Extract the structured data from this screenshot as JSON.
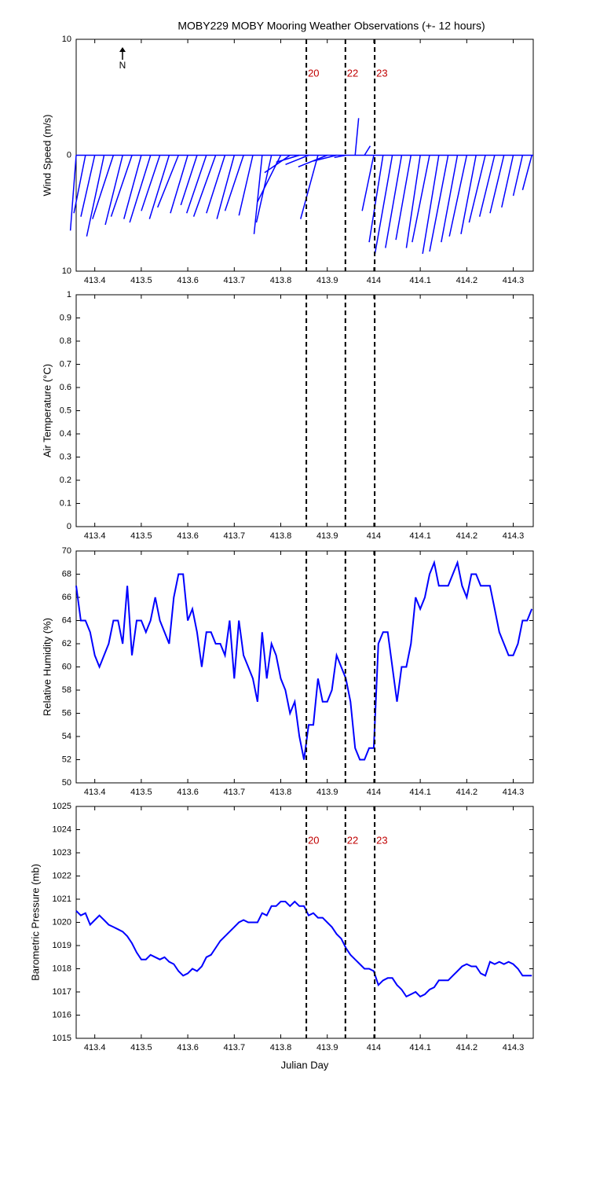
{
  "chart_data": [
    {
      "type": "stick",
      "title": "MOBY229 MOBY Mooring Weather Observations (+- 12 hours)",
      "ylabel": "Wind Speed (m/s)",
      "north_label": "N",
      "color": "#0000ff",
      "xlim": [
        413.36,
        414.343
      ],
      "xticks": [
        413.4,
        413.5,
        413.6,
        413.7,
        413.8,
        413.9,
        414,
        414.1,
        414.2,
        414.3
      ],
      "ylim": [
        -10,
        10
      ],
      "yticks": [
        {
          "value": -10,
          "label": "10"
        },
        0,
        10
      ],
      "markers": {
        "x": [
          413.855,
          413.939,
          414.002
        ],
        "labels": [
          "20",
          "22",
          "23"
        ],
        "color": "#c00000"
      },
      "x": [
        413.36,
        413.38,
        413.4,
        413.42,
        413.44,
        413.46,
        413.48,
        413.5,
        413.52,
        413.54,
        413.56,
        413.58,
        413.6,
        413.62,
        413.64,
        413.66,
        413.68,
        413.7,
        413.72,
        413.74,
        413.76,
        413.78,
        413.8,
        413.82,
        413.84,
        413.86,
        413.88,
        413.9,
        413.92,
        413.94,
        413.96,
        413.98,
        414.0,
        414.02,
        414.04,
        414.06,
        414.08,
        414.1,
        414.12,
        414.14,
        414.16,
        414.18,
        414.2,
        414.22,
        414.24,
        414.26,
        414.28,
        414.3,
        414.32,
        414.34
      ],
      "u": [
        -0.5,
        -1,
        -1.2,
        -1.5,
        -1.8,
        -1.5,
        -1.8,
        -1.5,
        -1.8,
        -1.6,
        -1.7,
        -1.8,
        -1.5,
        -1.4,
        -1.7,
        -1.9,
        -1.6,
        -1.5,
        -1.6,
        -1.2,
        -0.7,
        -1.3,
        -2,
        -2.2,
        -2,
        -2,
        -1.5,
        -2.5,
        -2,
        -1,
        0.3,
        0.5,
        -1,
        -1.2,
        -1.5,
        -1.4,
        -1.3,
        -1.2,
        -1.5,
        -1.4,
        -1.6,
        -1.4,
        -1.5,
        -1.3,
        -1.4,
        -1.3,
        -1.2,
        -1,
        -0.8,
        -0.8
      ],
      "v": [
        -6.5,
        -5,
        -5.3,
        -7,
        -5.5,
        -6,
        -5.3,
        -5.5,
        -5.8,
        -4.8,
        -5.5,
        -4.5,
        -5,
        -4.3,
        -5,
        -5.3,
        -5,
        -5.5,
        -4.8,
        -5.2,
        -6.8,
        -5.8,
        -4,
        -1.5,
        -0.6,
        -0.8,
        -5.5,
        -1,
        -0.5,
        -0.2,
        3.2,
        0.8,
        -4.8,
        -7.5,
        -8.5,
        -8,
        -7.3,
        -8,
        -7.5,
        -8.5,
        -8.3,
        -7.5,
        -7,
        -6.8,
        -5.8,
        -5.3,
        -5,
        -4.5,
        -3.5,
        -3
      ]
    },
    {
      "type": "line",
      "ylabel": "Air Temperature (°C)",
      "color": "#0000ff",
      "xlim": [
        413.36,
        414.343
      ],
      "xticks": [
        413.4,
        413.5,
        413.6,
        413.7,
        413.8,
        413.9,
        414,
        414.1,
        414.2,
        414.3
      ],
      "ylim": [
        0,
        1
      ],
      "yticks": [
        0,
        0.1,
        0.2,
        0.3,
        0.4,
        0.5,
        0.6,
        0.7,
        0.8,
        0.9,
        1
      ],
      "markers": {
        "x": [
          413.855,
          413.939,
          414.002
        ]
      },
      "x": [],
      "values": []
    },
    {
      "type": "line",
      "ylabel": "Relative Humidity (%)",
      "color": "#0000ff",
      "xlim": [
        413.36,
        414.343
      ],
      "xticks": [
        413.4,
        413.5,
        413.6,
        413.7,
        413.8,
        413.9,
        414,
        414.1,
        414.2,
        414.3
      ],
      "ylim": [
        50,
        70
      ],
      "yticks": [
        50,
        52,
        54,
        56,
        58,
        60,
        62,
        64,
        66,
        68,
        70
      ],
      "markers": {
        "x": [
          413.855,
          413.939,
          414.002
        ]
      },
      "x": [
        413.36,
        413.37,
        413.38,
        413.39,
        413.4,
        413.41,
        413.42,
        413.43,
        413.44,
        413.45,
        413.46,
        413.47,
        413.48,
        413.49,
        413.5,
        413.51,
        413.52,
        413.53,
        413.54,
        413.55,
        413.56,
        413.57,
        413.58,
        413.59,
        413.6,
        413.61,
        413.62,
        413.63,
        413.64,
        413.65,
        413.66,
        413.67,
        413.68,
        413.69,
        413.7,
        413.71,
        413.72,
        413.73,
        413.74,
        413.75,
        413.76,
        413.77,
        413.78,
        413.79,
        413.8,
        413.81,
        413.82,
        413.83,
        413.84,
        413.85,
        413.86,
        413.87,
        413.88,
        413.89,
        413.9,
        413.91,
        413.92,
        413.93,
        413.94,
        413.95,
        413.96,
        413.97,
        413.98,
        413.99,
        414.0,
        414.01,
        414.02,
        414.03,
        414.04,
        414.05,
        414.06,
        414.07,
        414.08,
        414.09,
        414.1,
        414.11,
        414.12,
        414.13,
        414.14,
        414.15,
        414.16,
        414.17,
        414.18,
        414.19,
        414.2,
        414.21,
        414.22,
        414.23,
        414.24,
        414.25,
        414.26,
        414.27,
        414.28,
        414.29,
        414.3,
        414.31,
        414.32,
        414.33,
        414.34
      ],
      "values": [
        67,
        64,
        64,
        63,
        61,
        60,
        61,
        62,
        64,
        64,
        62,
        67,
        61,
        64,
        64,
        63,
        64,
        66,
        64,
        63,
        62,
        66,
        68,
        68,
        64,
        65,
        63,
        60,
        63,
        63,
        62,
        62,
        61,
        64,
        59,
        64,
        61,
        60,
        59,
        57,
        63,
        59,
        62,
        61,
        59,
        58,
        56,
        57,
        54,
        52,
        55,
        55,
        59,
        57,
        57,
        58,
        61,
        60,
        59,
        57,
        53,
        52,
        52,
        53,
        53,
        62,
        63,
        63,
        60,
        57,
        60,
        60,
        62,
        66,
        65,
        66,
        68,
        69,
        67,
        67,
        67,
        68,
        69,
        67,
        66,
        68,
        68,
        67,
        67,
        67,
        65,
        63,
        62,
        61,
        61,
        62,
        64,
        64,
        65
      ]
    },
    {
      "type": "line",
      "ylabel": "Barometric Pressure (mb)",
      "xlabel": "Julian Day",
      "color": "#0000ff",
      "xlim": [
        413.36,
        414.343
      ],
      "xticks": [
        413.4,
        413.5,
        413.6,
        413.7,
        413.8,
        413.9,
        414,
        414.1,
        414.2,
        414.3
      ],
      "ylim": [
        1015,
        1025
      ],
      "yticks": [
        1015,
        1016,
        1017,
        1018,
        1019,
        1020,
        1021,
        1022,
        1023,
        1024,
        1025
      ],
      "markers": {
        "x": [
          413.855,
          413.939,
          414.002
        ],
        "labels": [
          "20",
          "22",
          "23"
        ],
        "color": "#c00000"
      },
      "x": [
        413.36,
        413.37,
        413.38,
        413.39,
        413.4,
        413.41,
        413.42,
        413.43,
        413.44,
        413.45,
        413.46,
        413.47,
        413.48,
        413.49,
        413.5,
        413.51,
        413.52,
        413.53,
        413.54,
        413.55,
        413.56,
        413.57,
        413.58,
        413.59,
        413.6,
        413.61,
        413.62,
        413.63,
        413.64,
        413.65,
        413.66,
        413.67,
        413.68,
        413.69,
        413.7,
        413.71,
        413.72,
        413.73,
        413.74,
        413.75,
        413.76,
        413.77,
        413.78,
        413.79,
        413.8,
        413.81,
        413.82,
        413.83,
        413.84,
        413.85,
        413.86,
        413.87,
        413.88,
        413.89,
        413.9,
        413.91,
        413.92,
        413.93,
        413.94,
        413.95,
        413.96,
        413.97,
        413.98,
        413.99,
        414.0,
        414.01,
        414.02,
        414.03,
        414.04,
        414.05,
        414.06,
        414.07,
        414.08,
        414.09,
        414.1,
        414.11,
        414.12,
        414.13,
        414.14,
        414.15,
        414.16,
        414.17,
        414.18,
        414.19,
        414.2,
        414.21,
        414.22,
        414.23,
        414.24,
        414.25,
        414.26,
        414.27,
        414.28,
        414.29,
        414.3,
        414.31,
        414.32,
        414.33,
        414.34
      ],
      "values": [
        1020.5,
        1020.3,
        1020.4,
        1019.9,
        1020.1,
        1020.3,
        1020.1,
        1019.9,
        1019.8,
        1019.7,
        1019.6,
        1019.4,
        1019.1,
        1018.7,
        1018.4,
        1018.4,
        1018.6,
        1018.5,
        1018.4,
        1018.5,
        1018.3,
        1018.2,
        1017.9,
        1017.7,
        1017.8,
        1018.0,
        1017.9,
        1018.1,
        1018.5,
        1018.6,
        1018.9,
        1019.2,
        1019.4,
        1019.6,
        1019.8,
        1020.0,
        1020.1,
        1020.0,
        1020.0,
        1020.0,
        1020.4,
        1020.3,
        1020.7,
        1020.7,
        1020.9,
        1020.9,
        1020.7,
        1020.9,
        1020.7,
        1020.7,
        1020.3,
        1020.4,
        1020.2,
        1020.2,
        1020.0,
        1019.8,
        1019.5,
        1019.3,
        1018.9,
        1018.6,
        1018.4,
        1018.2,
        1018.0,
        1018.0,
        1017.9,
        1017.3,
        1017.5,
        1017.6,
        1017.6,
        1017.3,
        1017.1,
        1016.8,
        1016.9,
        1017.0,
        1016.8,
        1016.9,
        1017.1,
        1017.2,
        1017.5,
        1017.5,
        1017.5,
        1017.7,
        1017.9,
        1018.1,
        1018.2,
        1018.1,
        1018.1,
        1017.8,
        1017.7,
        1018.3,
        1018.2,
        1018.3,
        1018.2,
        1018.3,
        1018.2,
        1018.0,
        1017.7,
        1017.7,
        1017.7
      ]
    }
  ]
}
